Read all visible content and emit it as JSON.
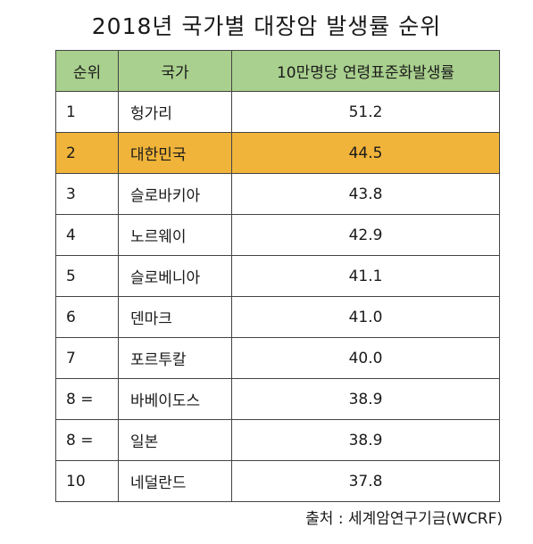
{
  "title": "2018년 국가별 대장암 발생률 순위",
  "table": {
    "headers": [
      "순위",
      "국가",
      "10만명당 연령표준화발생률"
    ],
    "rows": [
      {
        "rank": "1",
        "country": "헝가리",
        "value": "51.2"
      },
      {
        "rank": "2",
        "country": "대한민국",
        "value": "44.5"
      },
      {
        "rank": "3",
        "country": "슬로바키아",
        "value": "43.8"
      },
      {
        "rank": "4",
        "country": "노르웨이",
        "value": "42.9"
      },
      {
        "rank": "5",
        "country": "슬로베니아",
        "value": "41.1"
      },
      {
        "rank": "6",
        "country": "덴마크",
        "value": "41.0"
      },
      {
        "rank": "7",
        "country": "포르투칼",
        "value": "40.0"
      },
      {
        "rank": "8 =",
        "country": "바베이도스",
        "value": "38.9"
      },
      {
        "rank": "8 =",
        "country": "일본",
        "value": "38.9"
      },
      {
        "rank": "10",
        "country": "네덜란드",
        "value": "37.8"
      }
    ]
  },
  "highlighted_country": "대한민국",
  "source": "출처 : 세계암연구기금(WCRF)",
  "colors": {
    "header_background": "#a9d08e",
    "highlight_background": "#f0b43a",
    "border": "#444444"
  }
}
